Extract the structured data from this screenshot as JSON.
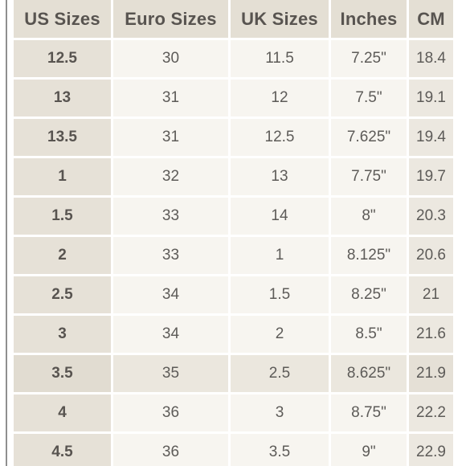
{
  "table": {
    "headers": {
      "us": "US Sizes",
      "euro": "Euro Sizes",
      "uk": "UK Sizes",
      "inches": "Inches",
      "cm": "CM"
    },
    "rows": [
      {
        "us": "12.5",
        "euro": "30",
        "uk": "11.5",
        "inches": "7.25\"",
        "cm": "18.4"
      },
      {
        "us": "13",
        "euro": "31",
        "uk": "12",
        "inches": "7.5\"",
        "cm": "19.1"
      },
      {
        "us": "13.5",
        "euro": "31",
        "uk": "12.5",
        "inches": "7.625\"",
        "cm": "19.4"
      },
      {
        "us": "1",
        "euro": "32",
        "uk": "13",
        "inches": "7.75\"",
        "cm": "19.7"
      },
      {
        "us": "1.5",
        "euro": "33",
        "uk": "14",
        "inches": "8\"",
        "cm": "20.3"
      },
      {
        "us": "2",
        "euro": "33",
        "uk": "1",
        "inches": "8.125\"",
        "cm": "20.6"
      },
      {
        "us": "2.5",
        "euro": "34",
        "uk": "1.5",
        "inches": "8.25\"",
        "cm": "21"
      },
      {
        "us": "3",
        "euro": "34",
        "uk": "2",
        "inches": "8.5\"",
        "cm": "21.6"
      },
      {
        "us": "3.5",
        "euro": "35",
        "uk": "2.5",
        "inches": "8.625\"",
        "cm": "21.9"
      },
      {
        "us": "4",
        "euro": "36",
        "uk": "3",
        "inches": "8.75\"",
        "cm": "22.2"
      },
      {
        "us": "4.5",
        "euro": "36",
        "uk": "3.5",
        "inches": "9\"",
        "cm": "22.9"
      }
    ],
    "highlighted_row": 8
  },
  "colors": {
    "header_bg": "#e4dfd4",
    "cell_bg": "#f7f5f0",
    "first_col_bg": "#e6e1d7",
    "highlight_bg": "#ebe7de",
    "text": "#5d5b58",
    "rule": "#8f8f8f"
  }
}
